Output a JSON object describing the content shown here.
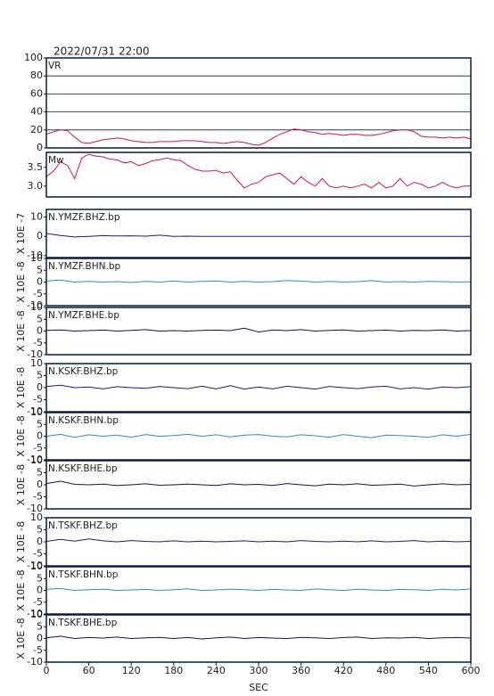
{
  "title": "2022/07/31 22:00",
  "chart_data": [
    {
      "type": "line",
      "xlim": [
        0,
        600
      ],
      "ylim": [
        0,
        100
      ],
      "yticks": [
        0,
        20,
        40,
        60,
        80,
        100
      ],
      "grid": true,
      "x": [
        0,
        10,
        20,
        30,
        40,
        50,
        60,
        70,
        80,
        90,
        100,
        110,
        120,
        130,
        140,
        150,
        160,
        170,
        180,
        190,
        200,
        210,
        220,
        230,
        240,
        250,
        260,
        270,
        280,
        290,
        300,
        310,
        320,
        330,
        340,
        350,
        360,
        370,
        380,
        390,
        400,
        410,
        420,
        430,
        440,
        450,
        460,
        470,
        480,
        490,
        500,
        510,
        520,
        530,
        540,
        550,
        560,
        570,
        580,
        590,
        600
      ],
      "series": [
        {
          "name": "VR",
          "color": "#d0144a",
          "values": [
            15,
            18,
            20,
            19,
            12,
            6,
            5,
            7,
            9,
            10,
            11,
            10,
            8,
            7,
            6,
            6,
            7,
            7,
            7,
            8,
            8,
            8,
            7,
            6,
            6,
            5,
            6,
            7,
            6,
            4,
            3,
            6,
            11,
            15,
            18,
            21,
            20,
            18,
            17,
            15,
            16,
            15,
            14,
            15,
            15,
            14,
            14,
            15,
            17,
            19,
            20,
            20,
            18,
            13,
            12,
            12,
            11,
            12,
            11,
            12,
            10
          ]
        }
      ]
    },
    {
      "type": "line",
      "xlim": [
        0,
        600
      ],
      "ylim": [
        2.71,
        3.9
      ],
      "yticks": [
        {
          "value": 3,
          "label": "3.0"
        },
        3.5
      ],
      "grid": false,
      "x": [
        0,
        10,
        20,
        30,
        40,
        50,
        60,
        70,
        80,
        90,
        100,
        110,
        120,
        130,
        140,
        150,
        160,
        170,
        180,
        190,
        200,
        210,
        220,
        230,
        240,
        250,
        260,
        270,
        280,
        290,
        300,
        310,
        320,
        330,
        340,
        350,
        360,
        370,
        380,
        390,
        400,
        410,
        420,
        430,
        440,
        450,
        460,
        470,
        480,
        490,
        500,
        510,
        520,
        530,
        540,
        550,
        560,
        570,
        580,
        590,
        600
      ],
      "series": [
        {
          "name": "Mw",
          "color": "#d0144a",
          "values": [
            3.25,
            3.4,
            3.65,
            3.55,
            3.2,
            3.75,
            3.85,
            3.8,
            3.78,
            3.72,
            3.7,
            3.62,
            3.65,
            3.55,
            3.6,
            3.68,
            3.7,
            3.75,
            3.7,
            3.68,
            3.55,
            3.45,
            3.4,
            3.4,
            3.42,
            3.35,
            3.38,
            3.15,
            2.95,
            3.05,
            3.1,
            3.25,
            3.3,
            3.35,
            3.2,
            3.05,
            3.25,
            3.1,
            3.0,
            3.2,
            3.0,
            2.95,
            3.0,
            2.95,
            3.0,
            3.05,
            2.95,
            3.1,
            2.95,
            3.0,
            3.2,
            3.0,
            3.1,
            3.05,
            2.95,
            3.0,
            3.1,
            3.0,
            2.95,
            3.0,
            3.0
          ]
        }
      ]
    },
    {
      "type": "line",
      "xlim": [
        0,
        600
      ],
      "ylim": [
        -11,
        14
      ],
      "yticks": [
        -10,
        0,
        10
      ],
      "ylabel": "X 10E -7",
      "x": [
        0,
        20,
        40,
        60,
        80,
        100,
        120,
        140,
        160,
        180,
        200,
        220,
        240,
        260,
        280,
        300,
        320,
        340,
        360,
        380,
        400,
        420,
        440,
        460,
        480,
        500,
        520,
        540,
        560,
        580,
        600
      ],
      "series": [
        {
          "name": "N.YMZF.BHZ.bp",
          "color": "#1a1a8c",
          "values": [
            1.5,
            0.5,
            -0.3,
            0,
            0.4,
            0.2,
            0.3,
            0.1,
            0.6,
            0,
            0.1,
            0,
            0,
            0,
            0,
            0,
            0,
            0,
            0,
            0,
            0,
            0,
            0,
            0,
            0,
            0,
            0,
            0,
            0,
            0,
            0
          ]
        }
      ]
    },
    {
      "type": "line",
      "xlim": [
        0,
        600
      ],
      "ylim": [
        -10,
        10
      ],
      "yticks": [
        -10,
        -5,
        0,
        5,
        10
      ],
      "ylabel": "X 10E -8",
      "x": [
        0,
        20,
        40,
        60,
        80,
        100,
        120,
        140,
        160,
        180,
        200,
        220,
        240,
        260,
        280,
        300,
        320,
        340,
        360,
        380,
        400,
        420,
        440,
        460,
        480,
        500,
        520,
        540,
        560,
        580,
        600
      ],
      "series": [
        {
          "name": "N.YMZF.BHN.bp",
          "color": "#2a8ad8",
          "values": [
            0.5,
            0.8,
            0,
            0.3,
            0,
            0.2,
            -0.2,
            0.3,
            0,
            0.4,
            0,
            0.3,
            0.5,
            0,
            0.3,
            0,
            0.2,
            0.6,
            0.4,
            0,
            0.3,
            0,
            0.2,
            0.6,
            0,
            0.2,
            0,
            0.3,
            0.2,
            0,
            0.1
          ]
        }
      ]
    },
    {
      "type": "line",
      "xlim": [
        0,
        600
      ],
      "ylim": [
        -10,
        10
      ],
      "yticks": [
        -10,
        -5,
        0,
        5,
        10
      ],
      "ylabel": "X 10E -8",
      "x": [
        0,
        20,
        40,
        60,
        80,
        100,
        120,
        140,
        160,
        180,
        200,
        220,
        240,
        260,
        280,
        300,
        320,
        340,
        360,
        380,
        400,
        420,
        440,
        460,
        480,
        500,
        520,
        540,
        560,
        580,
        600
      ],
      "series": [
        {
          "name": "N.YMZF.BHE.bp",
          "color": "#141450",
          "values": [
            0.3,
            0.5,
            0,
            0.2,
            0.4,
            0,
            0.3,
            0.6,
            0,
            0.2,
            0,
            0.3,
            0.4,
            0.2,
            1.2,
            -0.4,
            0.5,
            0.2,
            0.6,
            0,
            0.3,
            0.5,
            0,
            0.2,
            0.4,
            0,
            0.3,
            0.2,
            0.5,
            0,
            0.2
          ]
        }
      ]
    },
    {
      "type": "line",
      "xlim": [
        0,
        600
      ],
      "ylim": [
        -10,
        10
      ],
      "yticks": [
        -10,
        -5,
        0,
        5,
        10
      ],
      "ylabel": "X 10E -8",
      "x": [
        0,
        20,
        40,
        60,
        80,
        100,
        120,
        140,
        160,
        180,
        200,
        220,
        240,
        260,
        280,
        300,
        320,
        340,
        360,
        380,
        400,
        420,
        440,
        460,
        480,
        500,
        520,
        540,
        560,
        580,
        600
      ],
      "series": [
        {
          "name": "N.KSKF.BHZ.bp",
          "color": "#1a1a8c",
          "values": [
            0.5,
            1,
            0,
            0.3,
            -0.5,
            0.4,
            0,
            -0.3,
            0.5,
            0,
            -0.4,
            0.6,
            -0.5,
            0.8,
            -0.6,
            0.3,
            -0.5,
            0.6,
            0,
            -0.6,
            0.5,
            0,
            -0.4,
            0.3,
            0.6,
            -0.5,
            0,
            -0.6,
            0.3,
            0,
            0.4
          ]
        }
      ]
    },
    {
      "type": "line",
      "xlim": [
        0,
        600
      ],
      "ylim": [
        -10,
        10
      ],
      "yticks": [
        -10,
        -5,
        0,
        5,
        10
      ],
      "ylabel": "X 10E -8",
      "x": [
        0,
        20,
        40,
        60,
        80,
        100,
        120,
        140,
        160,
        180,
        200,
        220,
        240,
        260,
        280,
        300,
        320,
        340,
        360,
        380,
        400,
        420,
        440,
        460,
        480,
        500,
        520,
        540,
        560,
        580,
        600
      ],
      "series": [
        {
          "name": "N.KSKF.BHN.bp",
          "color": "#2a8ad8",
          "values": [
            0,
            0.8,
            -0.5,
            0.6,
            0,
            0.5,
            -0.4,
            0.7,
            0,
            0.3,
            0.8,
            0,
            0.6,
            -0.3,
            0.5,
            0.7,
            0,
            -0.3,
            0.6,
            0.2,
            -0.4,
            0.7,
            0,
            -0.6,
            0.5,
            0.3,
            0,
            -0.5,
            0.6,
            0,
            0.8
          ]
        }
      ]
    },
    {
      "type": "line",
      "xlim": [
        0,
        600
      ],
      "ylim": [
        -10,
        10
      ],
      "yticks": [
        -10,
        -5,
        0,
        5,
        10
      ],
      "ylabel": "X 10E -8",
      "x": [
        0,
        20,
        40,
        60,
        80,
        100,
        120,
        140,
        160,
        180,
        200,
        220,
        240,
        260,
        280,
        300,
        320,
        340,
        360,
        380,
        400,
        420,
        440,
        460,
        480,
        500,
        520,
        540,
        560,
        580,
        600
      ],
      "series": [
        {
          "name": "N.KSKF.BHE.bp",
          "color": "#141450",
          "values": [
            0.5,
            1.5,
            0.2,
            0,
            0.3,
            -0.3,
            0,
            0.4,
            -0.2,
            0,
            0.3,
            0,
            -0.3,
            0.4,
            0,
            0.2,
            -0.3,
            0.5,
            0,
            -0.4,
            0.3,
            0,
            0.4,
            -0.2,
            0,
            0.3,
            -0.5,
            0,
            0.4,
            0,
            0.2
          ]
        }
      ]
    },
    {
      "type": "line",
      "xlim": [
        0,
        600
      ],
      "ylim": [
        -10,
        10
      ],
      "yticks": [
        -10,
        -5,
        0,
        5,
        10
      ],
      "ylabel": "X 10E -8",
      "x": [
        0,
        20,
        40,
        60,
        80,
        100,
        120,
        140,
        160,
        180,
        200,
        220,
        240,
        260,
        280,
        300,
        320,
        340,
        360,
        380,
        400,
        420,
        440,
        460,
        480,
        500,
        520,
        540,
        560,
        580,
        600
      ],
      "series": [
        {
          "name": "N.TSKF.BHZ.bp",
          "color": "#1a1a8c",
          "values": [
            0.2,
            1,
            0.3,
            1.2,
            0.4,
            0,
            0.5,
            0.2,
            0,
            0.4,
            0,
            0.3,
            0,
            0.2,
            0.4,
            0,
            0.3,
            0,
            0.5,
            0.2,
            0,
            0.3,
            0,
            0.4,
            0,
            0.2,
            0.5,
            0,
            0.3,
            0,
            0.2
          ]
        }
      ]
    },
    {
      "type": "line",
      "xlim": [
        0,
        600
      ],
      "ylim": [
        -10,
        10
      ],
      "yticks": [
        -10,
        -5,
        0,
        5,
        10
      ],
      "ylabel": "X 10E -8",
      "x": [
        0,
        20,
        40,
        60,
        80,
        100,
        120,
        140,
        160,
        180,
        200,
        220,
        240,
        260,
        280,
        300,
        320,
        340,
        360,
        380,
        400,
        420,
        440,
        460,
        480,
        500,
        520,
        540,
        560,
        580,
        600
      ],
      "series": [
        {
          "name": "N.TSKF.BHN.bp",
          "color": "#2a8ad8",
          "values": [
            0.5,
            0.8,
            0,
            0.3,
            0.5,
            0,
            0.2,
            0.4,
            0,
            0.3,
            0.6,
            0,
            0.2,
            0.5,
            0.3,
            0,
            0.4,
            0.2,
            0,
            0.6,
            0.3,
            0,
            0.5,
            0.2,
            0,
            0.4,
            0.3,
            0,
            0.5,
            0.2,
            0.6
          ]
        }
      ]
    },
    {
      "type": "line",
      "xlim": [
        0,
        600
      ],
      "ylim": [
        -10,
        10
      ],
      "yticks": [
        -10,
        -5,
        0,
        5,
        10
      ],
      "ylabel": "X 10E -8",
      "x": [
        0,
        20,
        40,
        60,
        80,
        100,
        120,
        140,
        160,
        180,
        200,
        220,
        240,
        260,
        280,
        300,
        320,
        340,
        360,
        380,
        400,
        420,
        440,
        460,
        480,
        500,
        520,
        540,
        560,
        580,
        600
      ],
      "series": [
        {
          "name": "N.TSKF.BHE.bp",
          "color": "#141450",
          "values": [
            0.3,
            1,
            0,
            0.4,
            0.2,
            0.6,
            0,
            0.3,
            0.5,
            0,
            0.4,
            -0.2,
            0.3,
            0.6,
            0,
            0.4,
            0.2,
            0,
            0.5,
            0.3,
            0,
            0.4,
            0.6,
            0,
            0.3,
            0.2,
            0.5,
            0,
            0.3,
            0.4,
            0.2
          ]
        }
      ],
      "xlabel": "SEC",
      "xticks": [
        0,
        60,
        120,
        180,
        240,
        300,
        360,
        420,
        480,
        540,
        600
      ]
    }
  ]
}
